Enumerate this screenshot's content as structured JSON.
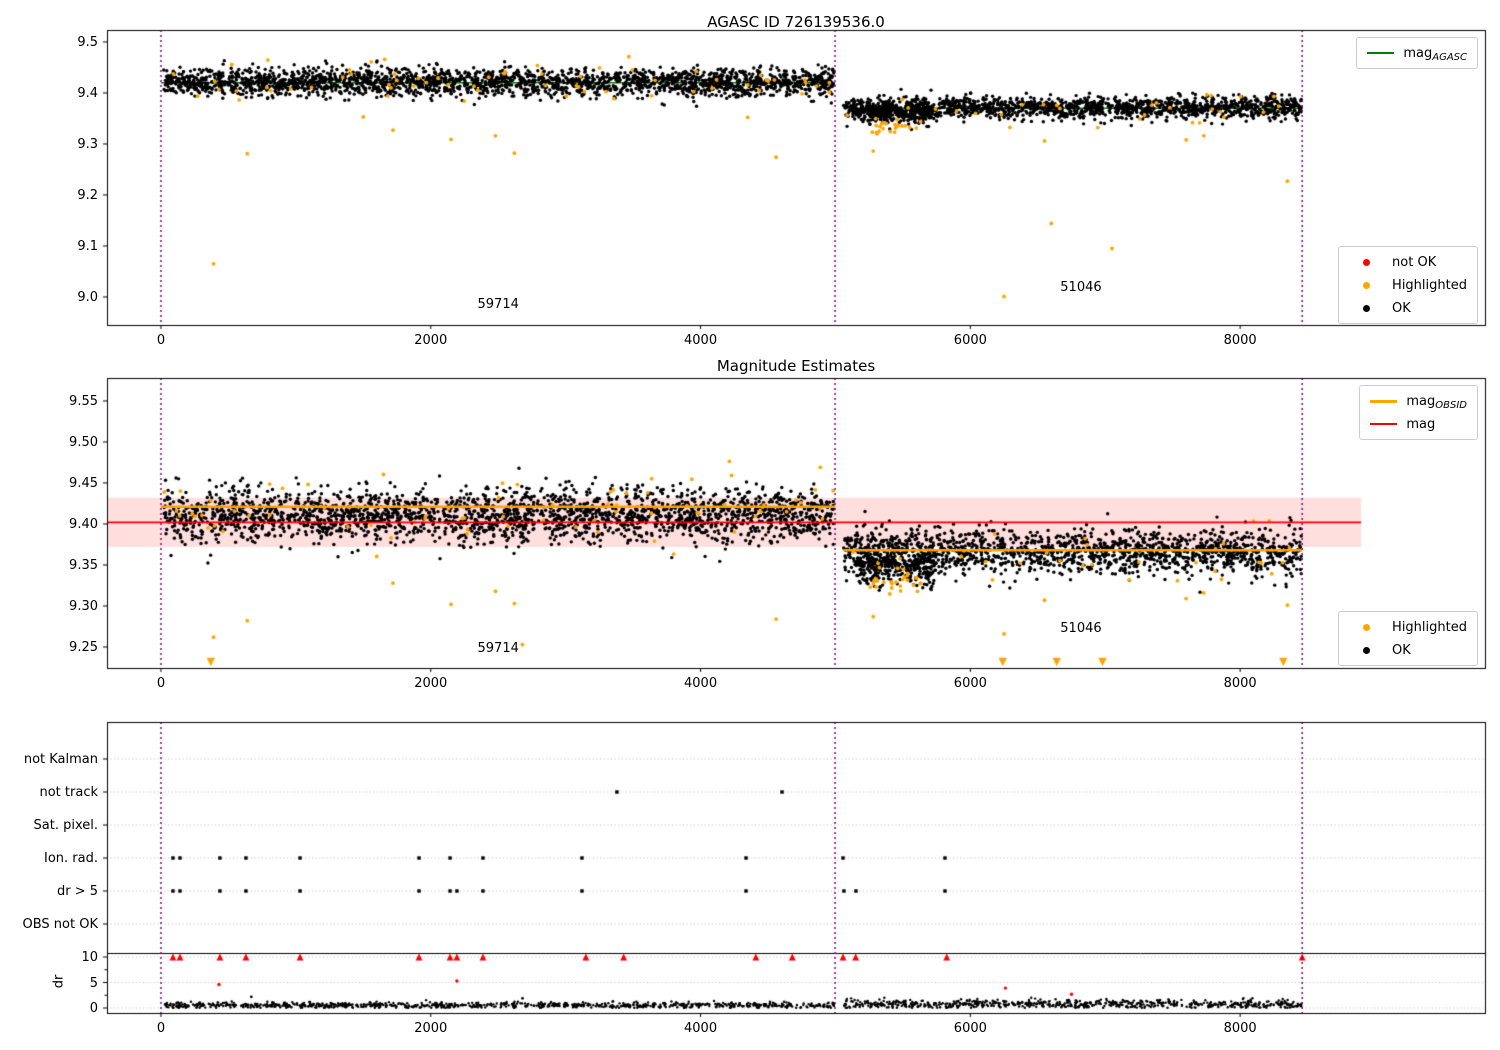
{
  "colors": {
    "ok": "#000000",
    "highlighted": "#ffa500",
    "not_ok": "#ff0000",
    "mag_agasc": "#008000",
    "mag_obsid": "#ffa500",
    "mag": "#ff0000",
    "mag_band": "rgba(255,0,0,0.13)",
    "divider": "#800080",
    "grid": "#b5b5b5",
    "axis": "#000000"
  },
  "chart_data": [
    {
      "type": "scatter",
      "title": "AGASC ID 726139536.0",
      "xlim": [
        -400,
        9815
      ],
      "ylim": [
        8.945,
        9.5235
      ],
      "xtick_values": [
        0,
        2000,
        4000,
        6000,
        8000
      ],
      "xtick_labels": [
        "0",
        "2000",
        "4000",
        "6000",
        "8000"
      ],
      "ytick_values": [
        9.0,
        9.1,
        9.2,
        9.3,
        9.4,
        9.5
      ],
      "ytick_labels": [
        "9.0",
        "9.1",
        "9.2",
        "9.3",
        "9.4",
        "9.5"
      ],
      "obsid_dividers": [
        0,
        4997,
        8460
      ],
      "mag_agasc_segments": [
        [
          0,
          4997,
          9.42
        ],
        [
          5060,
          8460,
          9.37
        ]
      ],
      "ok_band": [
        {
          "x0": 20,
          "x1": 4990,
          "n": 2400,
          "mean": 9.421,
          "sd": 0.013
        },
        {
          "x0": 5060,
          "x1": 8455,
          "n": 1500,
          "mean": 9.371,
          "sd": 0.011
        },
        {
          "x0": 5150,
          "x1": 5750,
          "n": 260,
          "mean": 9.359,
          "sd": 0.009
        }
      ],
      "highlighted_band": [
        {
          "x0": 20,
          "x1": 4990,
          "n": 65,
          "mean": 9.424,
          "sd": 0.02
        },
        {
          "x0": 5060,
          "x1": 8455,
          "n": 30,
          "mean": 9.362,
          "sd": 0.016
        },
        {
          "x0": 5250,
          "x1": 5650,
          "n": 22,
          "mean": 9.332,
          "sd": 0.007
        }
      ],
      "highlighted_points": [
        [
          390,
          9.065
        ],
        [
          640,
          9.281
        ],
        [
          1500,
          9.353
        ],
        [
          1720,
          9.327
        ],
        [
          2150,
          9.309
        ],
        [
          2480,
          9.316
        ],
        [
          2620,
          9.282
        ],
        [
          4350,
          9.352
        ],
        [
          4560,
          9.274
        ],
        [
          5280,
          9.286
        ],
        [
          6250,
          9.001
        ],
        [
          6550,
          9.306
        ],
        [
          6600,
          9.144
        ],
        [
          7050,
          9.095
        ],
        [
          7600,
          9.308
        ],
        [
          7730,
          9.316
        ],
        [
          8350,
          9.227
        ]
      ],
      "legend_line": {
        "items": [
          {
            "label": "mag",
            "sub": "AGASC",
            "color_key": "mag_agasc"
          }
        ]
      },
      "legend_markers": {
        "items": [
          {
            "label": "not OK",
            "color_key": "not_ok"
          },
          {
            "label": "Highlighted",
            "color_key": "highlighted"
          },
          {
            "label": "OK",
            "color_key": "ok"
          }
        ]
      },
      "annotations": [
        {
          "text": "59714",
          "x": 2500,
          "y": 8.985
        },
        {
          "text": "51046",
          "x": 6820,
          "y": 9.018
        }
      ]
    },
    {
      "type": "scatter",
      "title": "Magnitude Estimates",
      "xlim": [
        -400,
        9815
      ],
      "ylim": [
        9.2244,
        9.578
      ],
      "xtick_values": [
        0,
        2000,
        4000,
        6000,
        8000
      ],
      "xtick_labels": [
        "0",
        "2000",
        "4000",
        "6000",
        "8000"
      ],
      "ytick_values": [
        9.25,
        9.3,
        9.35,
        9.4,
        9.45,
        9.5,
        9.55
      ],
      "ytick_labels": [
        "9.25",
        "9.30",
        "9.35",
        "9.40",
        "9.45",
        "9.50",
        "9.55"
      ],
      "obsid_dividers": [
        0,
        4997,
        8460
      ],
      "mag_line": {
        "y": 9.402,
        "band": [
          9.372,
          9.432
        ],
        "x0": -400,
        "x1": 8897
      },
      "mag_obsid_segments": [
        [
          0,
          4997,
          9.421
        ],
        [
          5060,
          8460,
          9.368
        ]
      ],
      "ok_band": [
        {
          "x0": 20,
          "x1": 4990,
          "n": 2400,
          "mean": 9.411,
          "sd": 0.016
        },
        {
          "x0": 5060,
          "x1": 8455,
          "n": 1600,
          "mean": 9.366,
          "sd": 0.014
        },
        {
          "x0": 5150,
          "x1": 5750,
          "n": 260,
          "mean": 9.347,
          "sd": 0.011
        }
      ],
      "highlighted_band": [
        {
          "x0": 20,
          "x1": 4990,
          "n": 75,
          "mean": 9.413,
          "sd": 0.024
        },
        {
          "x0": 5060,
          "x1": 8455,
          "n": 35,
          "mean": 9.355,
          "sd": 0.018
        },
        {
          "x0": 5250,
          "x1": 5650,
          "n": 25,
          "mean": 9.331,
          "sd": 0.008
        }
      ],
      "highlighted_points": [
        [
          390,
          9.262
        ],
        [
          640,
          9.282
        ],
        [
          1720,
          9.328
        ],
        [
          2150,
          9.302
        ],
        [
          2480,
          9.318
        ],
        [
          2620,
          9.303
        ],
        [
          2680,
          9.253
        ],
        [
          4560,
          9.284
        ],
        [
          5280,
          9.287
        ],
        [
          6250,
          9.266
        ],
        [
          6550,
          9.307
        ],
        [
          7600,
          9.309
        ],
        [
          7730,
          9.316
        ],
        [
          8350,
          9.301
        ]
      ],
      "clipped_low_x": [
        370,
        6240,
        6640,
        6980,
        8320
      ],
      "legend_line": {
        "items": [
          {
            "label": "mag",
            "sub": "OBSID",
            "color_key": "mag_obsid"
          },
          {
            "label": "mag",
            "sub": "",
            "color_key": "mag"
          }
        ]
      },
      "legend_markers": {
        "items": [
          {
            "label": "Highlighted",
            "color_key": "highlighted"
          },
          {
            "label": "OK",
            "color_key": "ok"
          }
        ]
      },
      "annotations": [
        {
          "text": "59714",
          "x": 2500,
          "y": 9.247
        },
        {
          "text": "51046",
          "x": 6820,
          "y": 9.272
        }
      ]
    },
    {
      "type": "flags",
      "xlim": [
        -400,
        9815
      ],
      "xtick_values": [
        0,
        2000,
        4000,
        6000,
        8000
      ],
      "xtick_labels": [
        "0",
        "2000",
        "4000",
        "6000",
        "8000"
      ],
      "obsid_dividers": [
        0,
        4997,
        8460
      ],
      "flag_rows": [
        "not Kalman",
        "not track",
        "Sat. pixel.",
        "Ion. rad.",
        "dr > 5",
        "OBS not OK"
      ],
      "flag_marks": [
        [],
        [
          3380,
          4604
        ],
        [],
        [
          89,
          141,
          437,
          630,
          1031,
          1913,
          2143,
          2387,
          3121,
          4337,
          5056,
          5812
        ],
        [
          89,
          141,
          437,
          630,
          1031,
          1913,
          2143,
          2194,
          2387,
          3121,
          4337,
          5063,
          5152,
          5812
        ],
        []
      ],
      "dr_label": "dr",
      "dr_tick_values": [
        0,
        5,
        10
      ],
      "dr_tick_labels": [
        "0",
        "5",
        "10"
      ],
      "dr_band": [
        {
          "x0": 20,
          "x1": 4990,
          "n": 900,
          "mean": 0.55,
          "sd": 0.3
        },
        {
          "x0": 5060,
          "x1": 8455,
          "n": 700,
          "mean": 0.75,
          "sd": 0.45
        }
      ],
      "dr_red_clipped_x": [
        89,
        141,
        437,
        630,
        1031,
        1913,
        2143,
        2194,
        2387,
        3150,
        3430,
        4410,
        4680,
        5056,
        5150,
        5825,
        8460
      ],
      "dr_red_points": [
        [
          430,
          4.6
        ],
        [
          2194,
          5.3
        ],
        [
          6260,
          3.9
        ],
        [
          6750,
          2.7
        ]
      ],
      "dr_black_outliers": [
        [
          670,
          2.2
        ],
        [
          2680,
          1.9
        ]
      ]
    }
  ]
}
